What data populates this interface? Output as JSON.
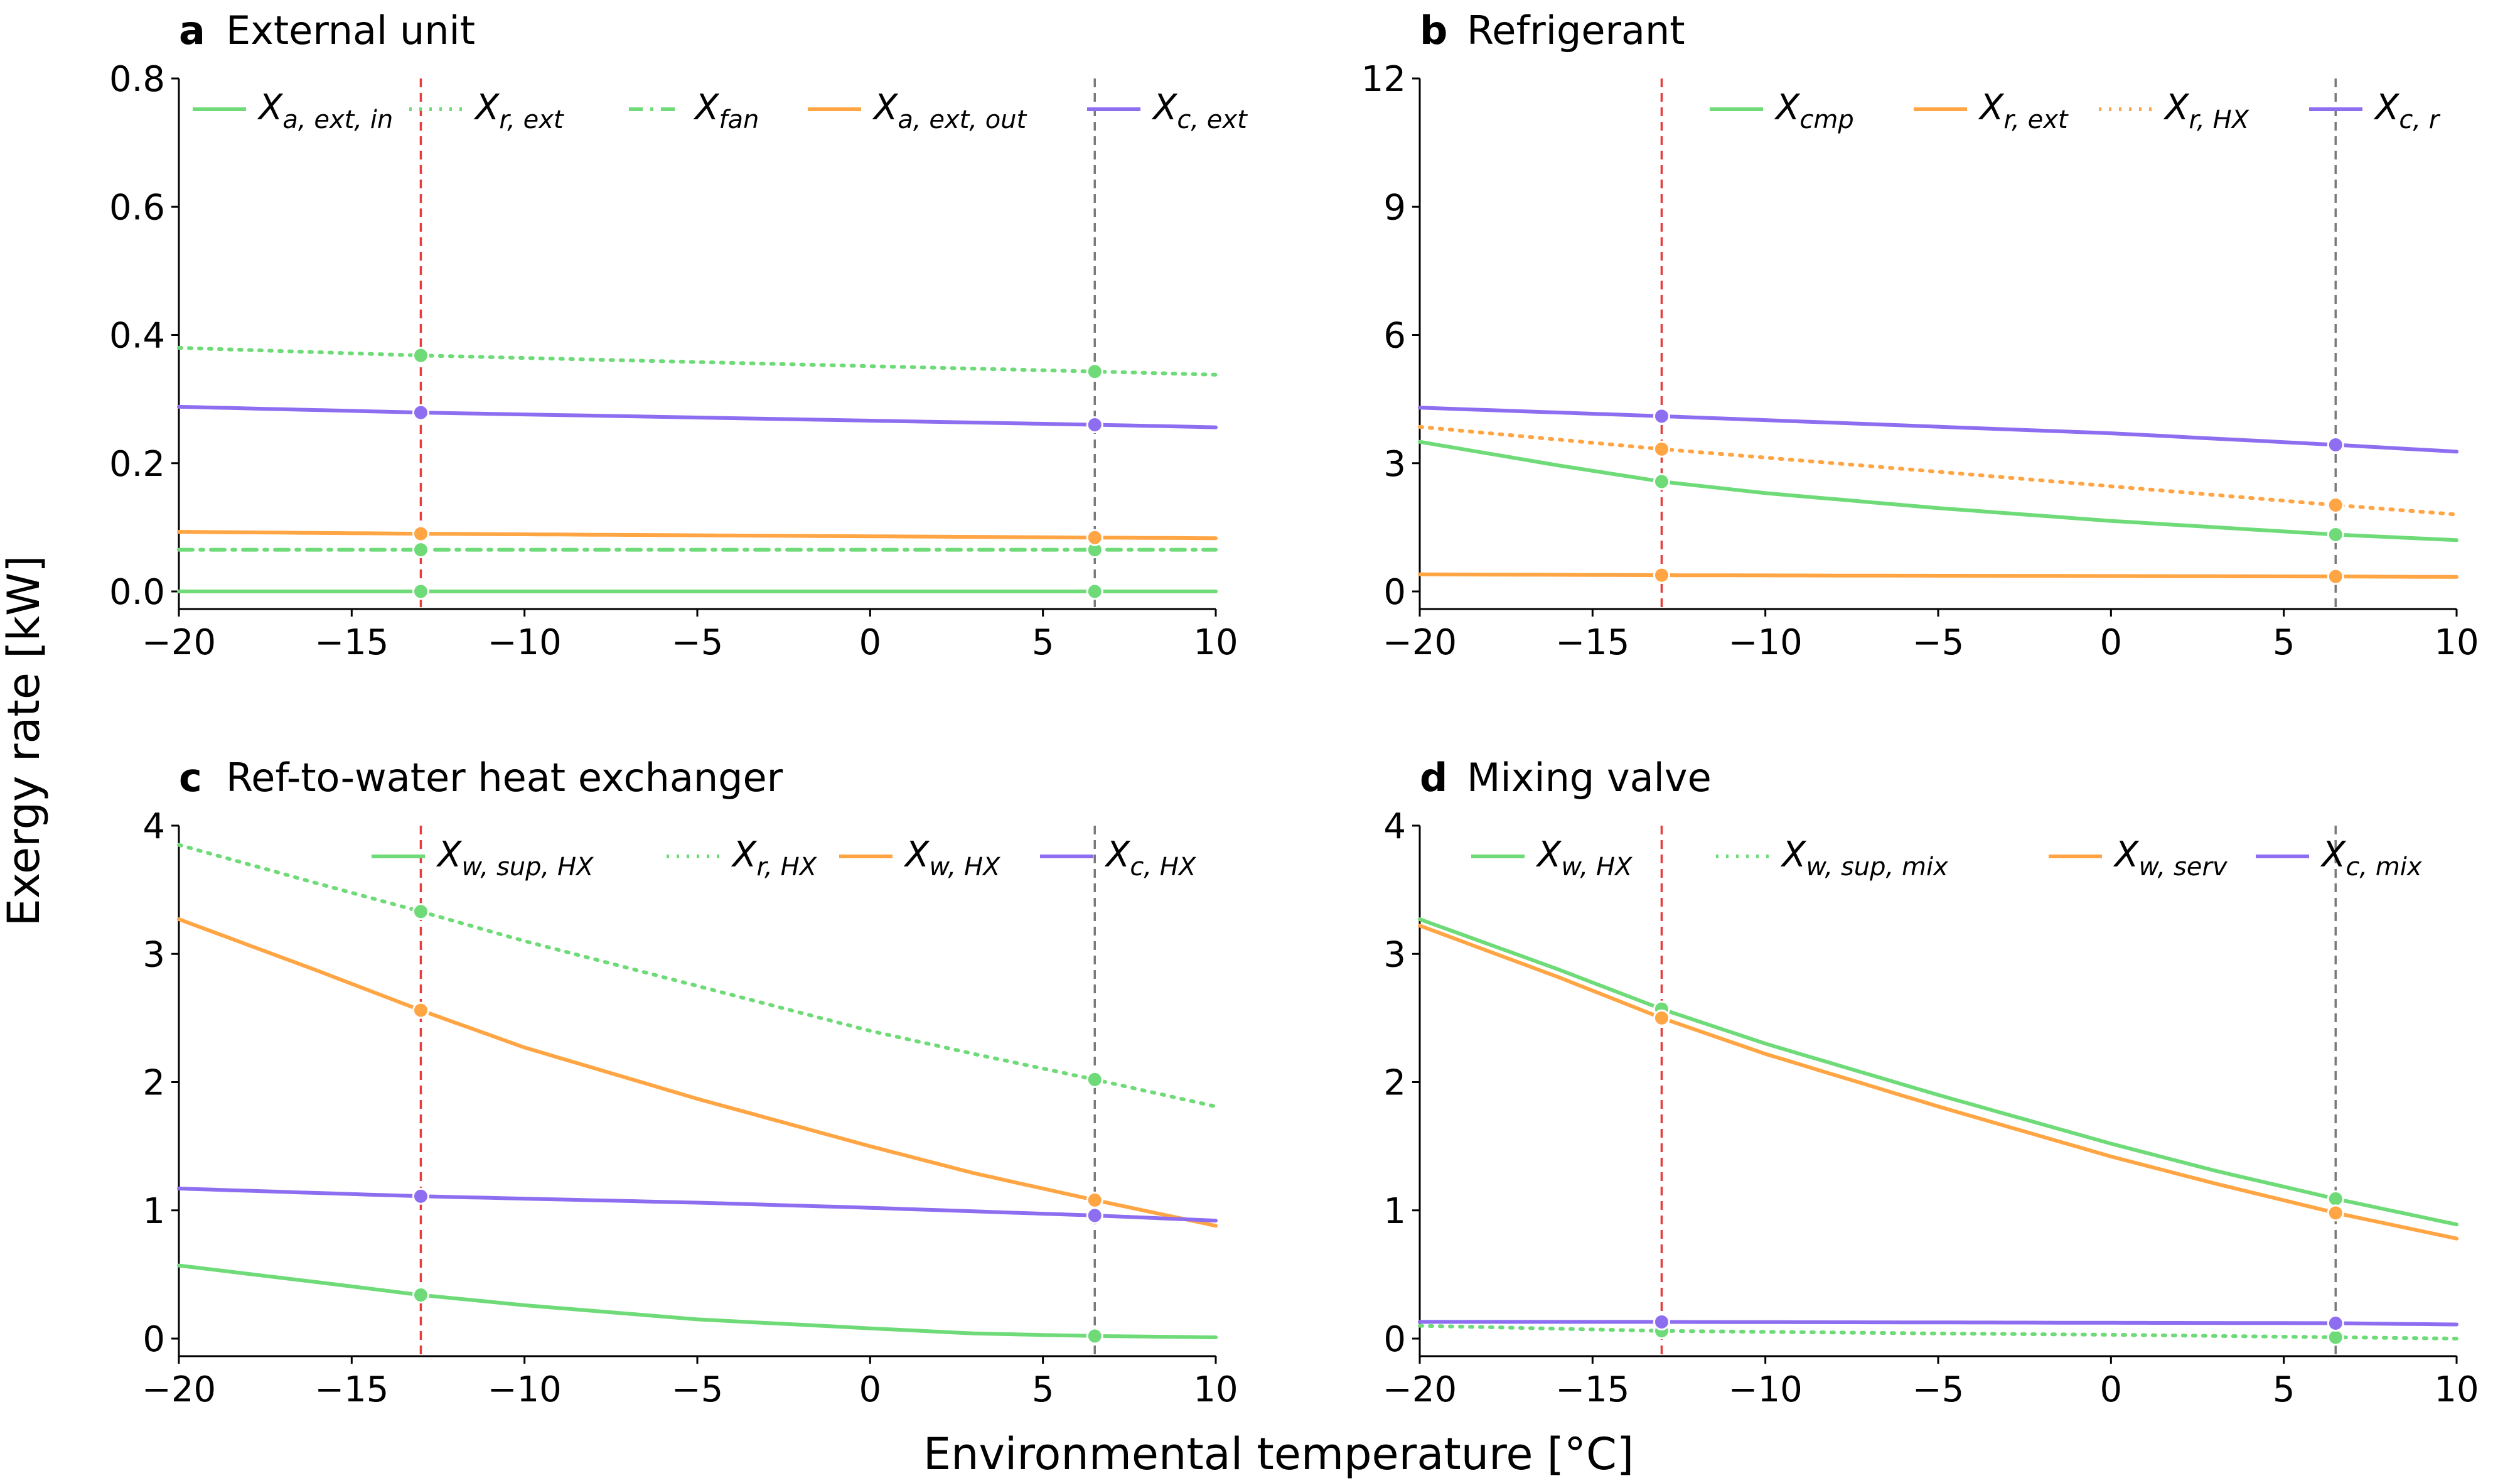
{
  "figure": {
    "ylabel": "Exergy rate [kW]",
    "xlabel": "Environmental temperature [°C]"
  },
  "colors": {
    "green": "#6edb78",
    "orange": "#ffa544",
    "purple": "#8e6ef0",
    "red_line": "#e83a3a",
    "gray_line": "#7a7a7a"
  },
  "chart_data": [
    {
      "type": "line",
      "panel": "a",
      "title": "External unit",
      "xlim": [
        -20,
        10
      ],
      "ylim": [
        0,
        0.8
      ],
      "xticks": [
        -20,
        -15,
        -10,
        -5,
        0,
        5,
        10
      ],
      "yticks": [
        0.0,
        0.2,
        0.4,
        0.6,
        0.8
      ],
      "ytick_labels": [
        "0.0",
        "0.2",
        "0.4",
        "0.6",
        "0.8"
      ],
      "vlines": [
        {
          "x": -13,
          "color": "red"
        },
        {
          "x": 6.5,
          "color": "gray"
        }
      ],
      "legend": "top-right",
      "series": [
        {
          "name": "X",
          "sub": "a, ext, in",
          "color": "green",
          "style": "solid",
          "x": [
            -20,
            -13,
            6.5,
            10
          ],
          "values": [
            0.0,
            0.0,
            0.0,
            0.0
          ],
          "markers": [
            -13,
            6.5
          ]
        },
        {
          "name": "X",
          "sub": "r, ext",
          "color": "green",
          "style": "dotted",
          "x": [
            -20,
            -13,
            6.5,
            10
          ],
          "values": [
            0.38,
            0.368,
            0.343,
            0.338
          ],
          "markers": [
            -13,
            6.5
          ]
        },
        {
          "name": "X",
          "sub": "fan",
          "color": "green",
          "style": "dashdot",
          "x": [
            -20,
            -13,
            6.5,
            10
          ],
          "values": [
            0.065,
            0.065,
            0.065,
            0.065
          ],
          "markers": [
            -13,
            6.5
          ]
        },
        {
          "name": "X",
          "sub": "a, ext, out",
          "color": "orange",
          "style": "solid",
          "x": [
            -20,
            -13,
            6.5,
            10
          ],
          "values": [
            0.093,
            0.09,
            0.084,
            0.083
          ],
          "markers": [
            -13,
            6.5
          ]
        },
        {
          "name": "X",
          "sub": "c, ext",
          "color": "purple",
          "style": "solid",
          "x": [
            -20,
            -13,
            6.5,
            10
          ],
          "values": [
            0.288,
            0.279,
            0.26,
            0.256
          ],
          "markers": [
            -13,
            6.5
          ]
        }
      ]
    },
    {
      "type": "line",
      "panel": "b",
      "title": "Refrigerant",
      "xlim": [
        -20,
        10
      ],
      "ylim": [
        0,
        12
      ],
      "xticks": [
        -20,
        -15,
        -10,
        -5,
        0,
        5,
        10
      ],
      "yticks": [
        0,
        3,
        6,
        9,
        12
      ],
      "ytick_labels": [
        "0",
        "3",
        "6",
        "9",
        "12"
      ],
      "vlines": [
        {
          "x": -13,
          "color": "red"
        },
        {
          "x": 6.5,
          "color": "gray"
        }
      ],
      "legend": "top-right",
      "series": [
        {
          "name": "X",
          "sub": "cmp",
          "color": "green",
          "style": "solid",
          "x": [
            -20,
            -16,
            -13,
            -10,
            -5,
            0,
            6.5,
            10
          ],
          "values": [
            3.5,
            2.95,
            2.57,
            2.3,
            1.95,
            1.65,
            1.33,
            1.2
          ],
          "markers": [
            -13,
            6.5
          ]
        },
        {
          "name": "X",
          "sub": "r, ext",
          "color": "orange",
          "style": "solid",
          "x": [
            -20,
            -13,
            6.5,
            10
          ],
          "values": [
            0.4,
            0.38,
            0.35,
            0.34
          ],
          "markers": [
            -13,
            6.5
          ]
        },
        {
          "name": "X",
          "sub": "r, HX",
          "color": "orange",
          "style": "dotted",
          "x": [
            -20,
            -13,
            -5,
            6.5,
            10
          ],
          "values": [
            3.85,
            3.33,
            2.8,
            2.02,
            1.8
          ],
          "markers": [
            -13,
            6.5
          ]
        },
        {
          "name": "X",
          "sub": "c, r",
          "color": "purple",
          "style": "solid",
          "x": [
            -20,
            -13,
            0,
            6.5,
            10
          ],
          "values": [
            4.3,
            4.1,
            3.7,
            3.43,
            3.27
          ],
          "markers": [
            -13,
            6.5
          ]
        }
      ]
    },
    {
      "type": "line",
      "panel": "c",
      "title": "Ref-to-water heat exchanger",
      "xlim": [
        -20,
        10
      ],
      "ylim": [
        0,
        4
      ],
      "xticks": [
        -20,
        -15,
        -10,
        -5,
        0,
        5,
        10
      ],
      "yticks": [
        0,
        1,
        2,
        3,
        4
      ],
      "ytick_labels": [
        "0",
        "1",
        "2",
        "3",
        "4"
      ],
      "vlines": [
        {
          "x": -13,
          "color": "red"
        },
        {
          "x": 6.5,
          "color": "gray"
        }
      ],
      "legend": "top-right",
      "series": [
        {
          "name": "X",
          "sub": "w, sup, HX",
          "color": "green",
          "style": "solid",
          "x": [
            -20,
            -16,
            -13,
            -10,
            -5,
            0,
            3,
            6.5,
            10
          ],
          "values": [
            0.57,
            0.44,
            0.34,
            0.26,
            0.15,
            0.08,
            0.04,
            0.02,
            0.01
          ],
          "markers": [
            -13,
            6.5
          ]
        },
        {
          "name": "X",
          "sub": "r, HX",
          "color": "green",
          "style": "dotted",
          "x": [
            -20,
            -16,
            -13,
            -10,
            -5,
            0,
            3,
            6.5,
            10
          ],
          "values": [
            3.85,
            3.55,
            3.33,
            3.1,
            2.75,
            2.4,
            2.22,
            2.02,
            1.81
          ],
          "markers": [
            -13,
            6.5
          ]
        },
        {
          "name": "X",
          "sub": "w, HX",
          "color": "orange",
          "style": "solid",
          "x": [
            -20,
            -16,
            -13,
            -10,
            -5,
            0,
            3,
            6.5,
            10
          ],
          "values": [
            3.27,
            2.87,
            2.56,
            2.27,
            1.87,
            1.5,
            1.29,
            1.08,
            0.88
          ],
          "markers": [
            -13,
            6.5
          ]
        },
        {
          "name": "X",
          "sub": "c, HX",
          "color": "purple",
          "style": "solid",
          "x": [
            -20,
            -13,
            -5,
            0,
            6.5,
            10
          ],
          "values": [
            1.17,
            1.11,
            1.06,
            1.02,
            0.96,
            0.92
          ],
          "markers": [
            -13,
            6.5
          ]
        }
      ]
    },
    {
      "type": "line",
      "panel": "d",
      "title": "Mixing valve",
      "xlim": [
        -20,
        10
      ],
      "ylim": [
        0,
        4
      ],
      "xticks": [
        -20,
        -15,
        -10,
        -5,
        0,
        5,
        10
      ],
      "yticks": [
        0,
        1,
        2,
        3,
        4
      ],
      "ytick_labels": [
        "0",
        "1",
        "2",
        "3",
        "4"
      ],
      "vlines": [
        {
          "x": -13,
          "color": "red"
        },
        {
          "x": 6.5,
          "color": "gray"
        }
      ],
      "legend": "top-right",
      "series": [
        {
          "name": "X",
          "sub": "w, HX",
          "color": "green",
          "style": "solid",
          "x": [
            -20,
            -16,
            -13,
            -10,
            -5,
            0,
            3,
            6.5,
            10
          ],
          "values": [
            3.27,
            2.88,
            2.57,
            2.3,
            1.9,
            1.52,
            1.31,
            1.09,
            0.89
          ],
          "markers": [
            -13,
            6.5
          ]
        },
        {
          "name": "X",
          "sub": "w, sup, mix",
          "color": "green",
          "style": "dotted",
          "x": [
            -20,
            -13,
            -5,
            0,
            6.5,
            10
          ],
          "values": [
            0.1,
            0.06,
            0.04,
            0.03,
            0.01,
            0.0
          ],
          "markers": [
            -13,
            6.5
          ]
        },
        {
          "name": "X",
          "sub": "w, serv",
          "color": "orange",
          "style": "solid",
          "x": [
            -20,
            -16,
            -13,
            -10,
            -5,
            0,
            3,
            6.5,
            10
          ],
          "values": [
            3.22,
            2.82,
            2.5,
            2.22,
            1.81,
            1.42,
            1.21,
            0.98,
            0.78
          ],
          "markers": [
            -13,
            6.5
          ]
        },
        {
          "name": "X",
          "sub": "c, mix",
          "color": "purple",
          "style": "solid",
          "x": [
            -20,
            -13,
            6.5,
            10
          ],
          "values": [
            0.13,
            0.13,
            0.12,
            0.11
          ],
          "markers": [
            -13,
            6.5
          ]
        }
      ]
    }
  ]
}
